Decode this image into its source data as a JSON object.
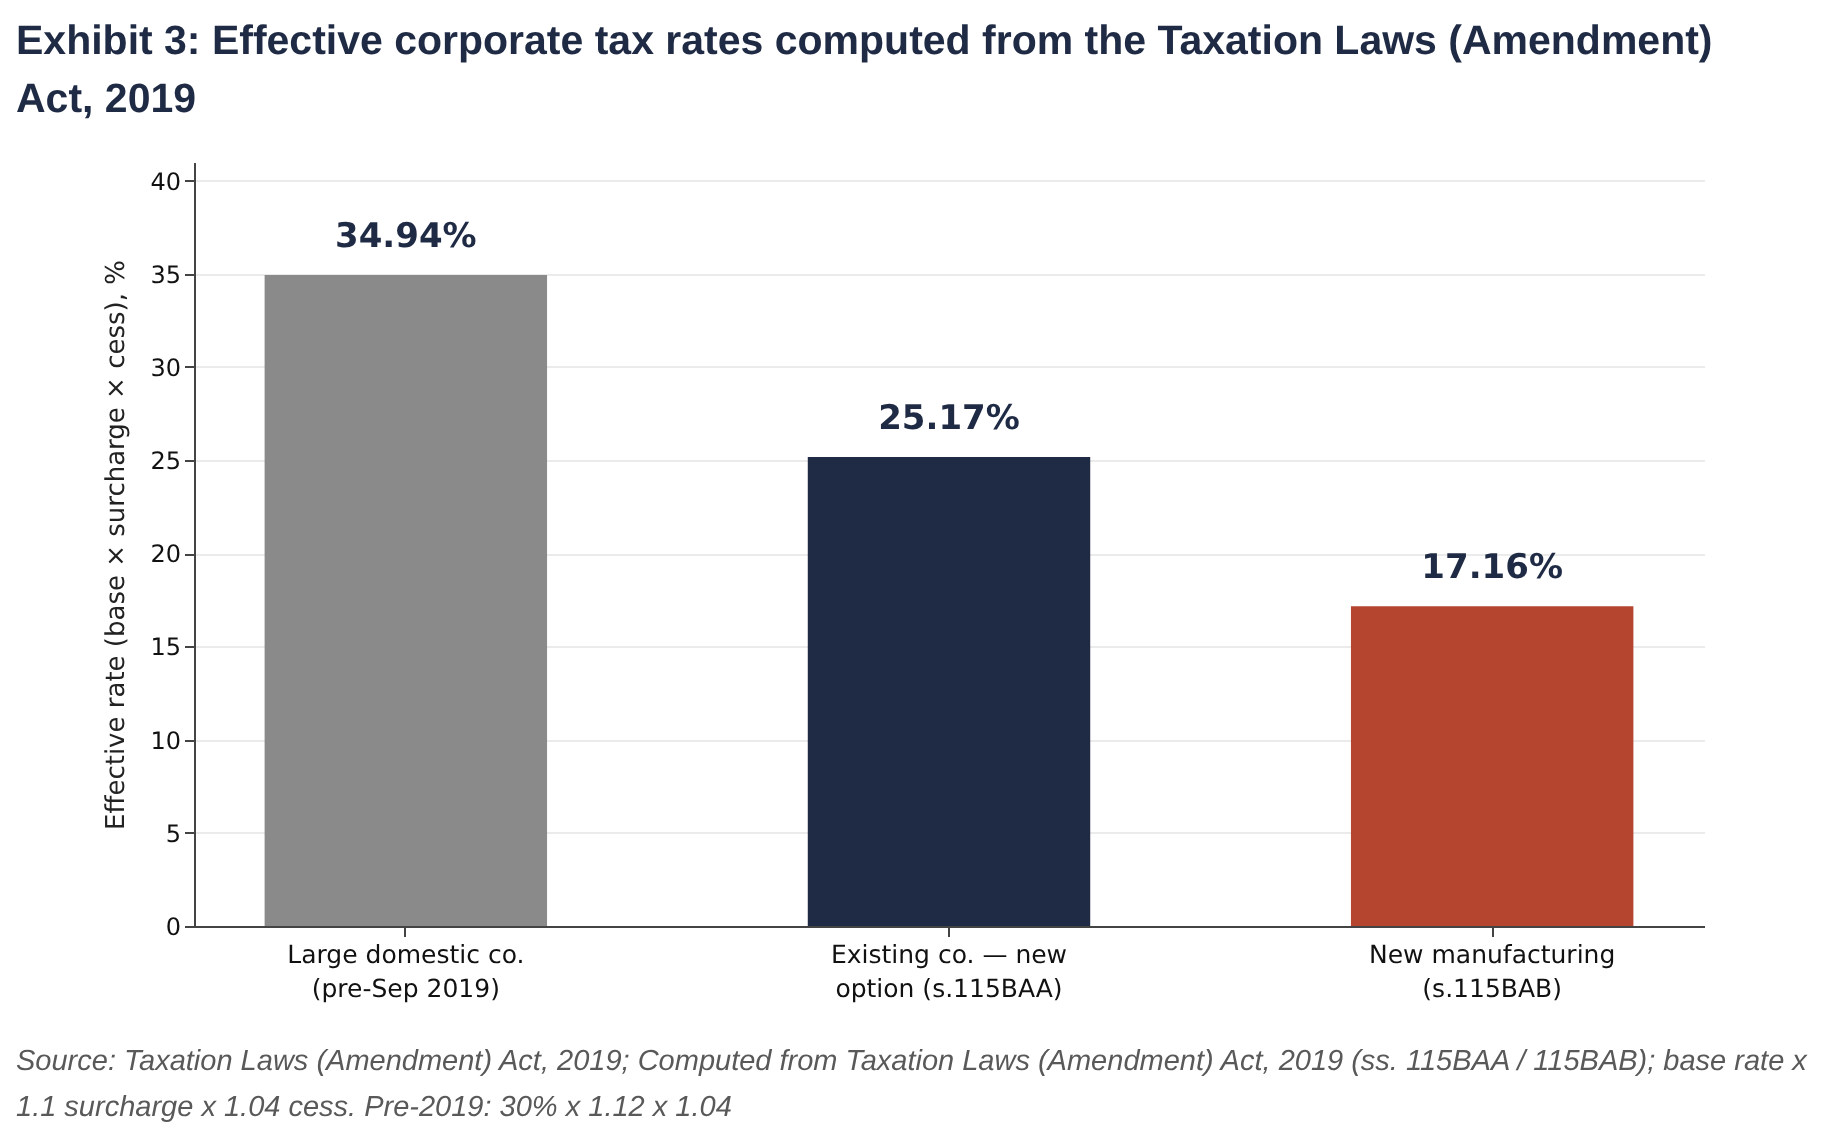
{
  "chart_data": {
    "type": "bar",
    "title": "Exhibit 3: Effective corporate tax rates computed from the Taxation Laws (Amendment) Act, 2019",
    "ylabel": "Effective rate (base × surcharge × cess), %",
    "categories": [
      "Large domestic co. (pre-Sep 2019)",
      "Existing co. — new option (s.115BAA)",
      "New manufacturing (s.115BAB)"
    ],
    "values": [
      34.94,
      25.17,
      17.16
    ],
    "colors": [
      "#8a8a8a",
      "#1f2a44",
      "#b5452f"
    ],
    "value_labels": [
      "34.94%",
      "25.17%",
      "17.16%"
    ],
    "ylim": [
      0,
      41
    ],
    "yticks": [
      0,
      5,
      10,
      15,
      20,
      25,
      30,
      35,
      40
    ],
    "grid": "y",
    "annotations": [
      "Source: Taxation Laws (Amendment) Act, 2019; Computed from Taxation Laws (Amendment) Act, 2019 (ss. 115BAA / 115BAB); base rate x 1.1 surcharge x 1.04 cess. Pre-2019: 30% x 1.12 x 1.04"
    ]
  }
}
